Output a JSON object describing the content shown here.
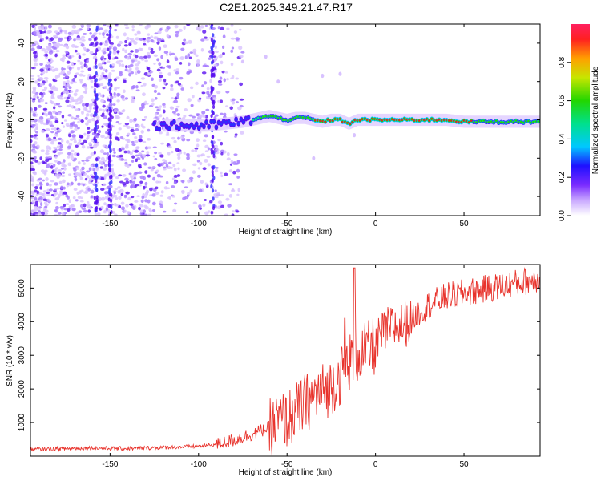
{
  "title": "C2E1.2025.349.21.47.R17",
  "colors": {
    "snr_line": "#e8332c",
    "ridge": "#e21f26",
    "scatter_light": "#d8c2ff",
    "scatter_mid": "#a277ff",
    "scatter_dark": "#5a10f0"
  },
  "chart_data": [
    {
      "id": "spectrogram",
      "type": "heatmap",
      "xlabel": "Height of straight line (km)",
      "ylabel": "Frequency (Hz)",
      "xlim": [
        -195,
        93
      ],
      "ylim": [
        -50,
        50
      ],
      "xticks": [
        -150,
        -100,
        -50,
        0,
        50
      ],
      "yticks": [
        -40,
        -20,
        0,
        20,
        40
      ],
      "ridge": {
        "x": [
          -95,
          -85,
          -75,
          -65,
          -60,
          -55,
          -50,
          -45,
          -40,
          -35,
          -30,
          -25,
          -20,
          -15,
          -10,
          -5,
          0,
          10,
          20,
          30,
          40,
          50,
          60,
          70,
          80,
          93
        ],
        "y": [
          -3,
          -2,
          -1,
          1,
          2,
          1,
          0,
          1,
          1,
          0,
          -1,
          0,
          0,
          -2,
          0,
          0,
          0,
          0,
          0,
          0,
          0,
          -1,
          -1,
          -1,
          -1,
          -1
        ]
      }
    },
    {
      "id": "colorbar",
      "type": "colorbar",
      "label": "Normalized spectral amplitude",
      "range": [
        0,
        1
      ],
      "ticks": [
        "0.0",
        "0.2",
        "0.4",
        "0.6",
        "0.8"
      ]
    },
    {
      "id": "snr",
      "type": "line",
      "xlabel": "Height of straight line (km)",
      "ylabel": "SNR (10 * v/v)",
      "xlim": [
        -195,
        93
      ],
      "ylim": [
        0,
        5700
      ],
      "xticks": [
        -150,
        -100,
        -50,
        0,
        50
      ],
      "yticks": [
        1000,
        2000,
        3000,
        4000,
        5000
      ],
      "series": [
        {
          "name": "SNR",
          "x": [
            -195,
            -180,
            -160,
            -150,
            -140,
            -120,
            -100,
            -90,
            -80,
            -70,
            -60,
            -50,
            -45,
            -40,
            -35,
            -30,
            -25,
            -20,
            -15,
            -10,
            -5,
            0,
            5,
            10,
            15,
            20,
            25,
            30,
            40,
            50,
            60,
            70,
            80,
            93
          ],
          "y": [
            200,
            220,
            250,
            230,
            230,
            260,
            290,
            350,
            480,
            650,
            850,
            1100,
            1300,
            1550,
            1800,
            1900,
            2100,
            2400,
            2800,
            3050,
            3100,
            3300,
            3700,
            3850,
            3900,
            4000,
            4300,
            4500,
            4750,
            4850,
            4950,
            5050,
            5150,
            5300
          ]
        }
      ]
    }
  ]
}
